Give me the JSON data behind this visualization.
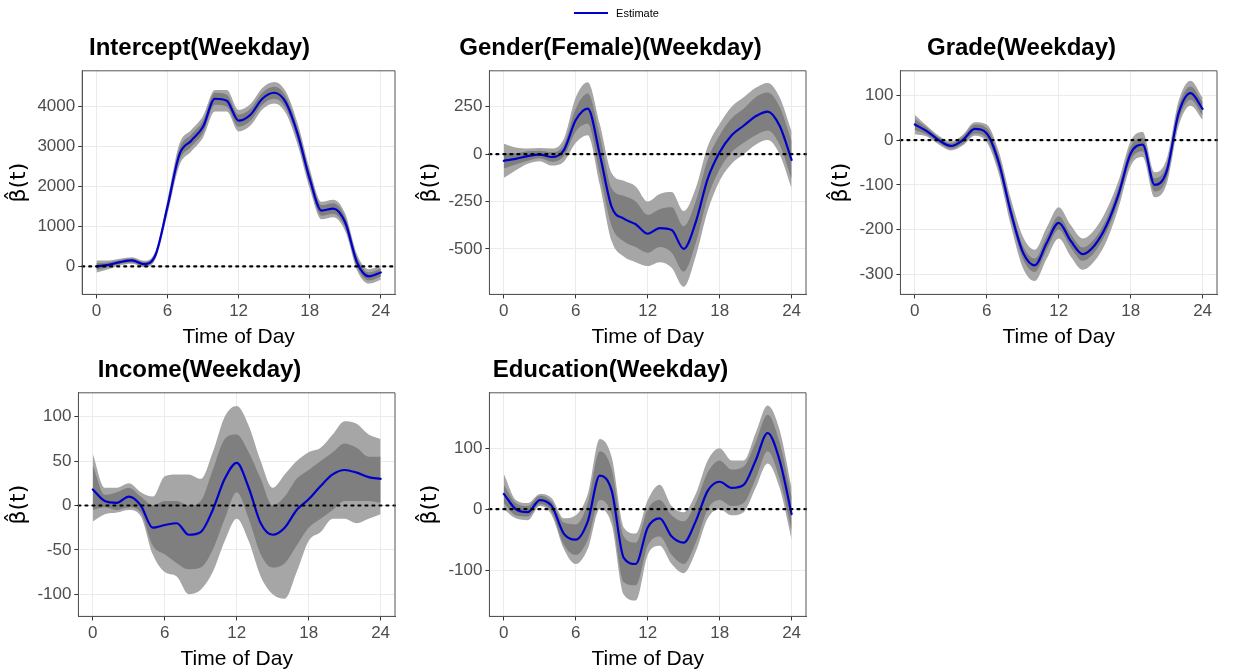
{
  "chart_data": [
    {
      "type": "line",
      "title": "Intercept(Weekday)",
      "xlabel": "Time of Day",
      "ylabel": "β̂(t)",
      "legend": "top",
      "grid": true,
      "line_style": "solid",
      "marker": "none",
      "xlim": [
        -1.2,
        25.2
      ],
      "xticks": [
        0,
        6,
        12,
        18,
        24
      ],
      "ylim": [
        -700,
        4900
      ],
      "yticks": [
        0,
        1000,
        2000,
        3000,
        4000
      ],
      "x": [
        0,
        1,
        2,
        3,
        4,
        5,
        6,
        7,
        8,
        9,
        10,
        11,
        12,
        13,
        14,
        15,
        16,
        17,
        18,
        19,
        20,
        21,
        22,
        23,
        24
      ],
      "ref_lines": [
        {
          "axis": "y",
          "value": 0,
          "color": "#000000",
          "line_style": "dotted"
        }
      ],
      "series": [
        {
          "color": "#a6a6a6",
          "values": [
            null,
            null,
            null,
            null,
            null,
            null,
            null,
            null,
            null,
            null,
            null,
            null,
            null,
            null,
            null,
            null,
            null,
            null,
            null,
            null,
            null,
            null,
            null,
            null,
            null
          ],
          "lower": [
            -150,
            -70,
            30,
            70,
            -20,
            200,
            1320,
            2530,
            2880,
            3230,
            3880,
            3880,
            3380,
            3530,
            3930,
            4080,
            3830,
            3030,
            1950,
            1180,
            1230,
            880,
            -100,
            -430,
            -330
          ],
          "upper": [
            150,
            150,
            190,
            230,
            140,
            400,
            1680,
            3070,
            3420,
            3770,
            4420,
            4420,
            3920,
            4070,
            4470,
            4620,
            4370,
            3570,
            2450,
            1620,
            1670,
            1320,
            300,
            -70,
            30
          ]
        },
        {
          "color": "#7f7f7f",
          "values": [
            null,
            null,
            null,
            null,
            null,
            null,
            null,
            null,
            null,
            null,
            null,
            null,
            null,
            null,
            null,
            null,
            null,
            null,
            null,
            null,
            null,
            null,
            null,
            null,
            null
          ],
          "lower": [
            -80,
            -20,
            60,
            100,
            10,
            240,
            1400,
            2650,
            3000,
            3350,
            4050,
            4000,
            3500,
            3650,
            4050,
            4200,
            3950,
            3150,
            2050,
            1270,
            1320,
            970,
            -20,
            -350,
            -250
          ],
          "upper": [
            80,
            100,
            160,
            200,
            110,
            360,
            1600,
            2950,
            3300,
            3650,
            4350,
            4300,
            3800,
            3950,
            4350,
            4500,
            4250,
            3450,
            2350,
            1530,
            1580,
            1230,
            220,
            -150,
            -50
          ]
        },
        {
          "name": "Estimate",
          "color": "#0000cd",
          "values": [
            0,
            40,
            110,
            150,
            60,
            300,
            1500,
            2800,
            3150,
            3500,
            4200,
            4150,
            3650,
            3800,
            4200,
            4350,
            4100,
            3300,
            2200,
            1400,
            1450,
            1100,
            100,
            -250,
            -150
          ]
        }
      ]
    },
    {
      "type": "line",
      "title": "Gender(Female)(Weekday)",
      "xlabel": "Time of Day",
      "ylabel": "β̂(t)",
      "grid": true,
      "line_style": "solid",
      "marker": "none",
      "xlim": [
        -1.2,
        25.2
      ],
      "xticks": [
        0,
        6,
        12,
        18,
        24
      ],
      "ylim": [
        -740,
        440
      ],
      "yticks": [
        -500,
        -250,
        0,
        250
      ],
      "x": [
        0,
        1,
        2,
        3,
        4,
        5,
        6,
        7,
        8,
        9,
        10,
        11,
        12,
        13,
        14,
        15,
        16,
        17,
        18,
        19,
        20,
        21,
        22,
        23,
        24
      ],
      "ref_lines": [
        {
          "axis": "y",
          "value": 0,
          "color": "#000000",
          "line_style": "dotted"
        }
      ],
      "series": [
        {
          "color": "#a6a6a6",
          "values": [
            null,
            null,
            null,
            null,
            null,
            null,
            null,
            null,
            null,
            null,
            null,
            null,
            null,
            null,
            null,
            null,
            null,
            null,
            null,
            null,
            null,
            null,
            null,
            null,
            null
          ],
          "lower": [
            -125,
            -85,
            -50,
            -37,
            -60,
            -40,
            60,
            100,
            -160,
            -460,
            -540,
            -570,
            -590,
            -570,
            -600,
            -700,
            -540,
            -300,
            -140,
            -50,
            0,
            50,
            75,
            0,
            -180
          ],
          "upper": [
            55,
            35,
            30,
            33,
            30,
            80,
            300,
            380,
            160,
            -100,
            -140,
            -170,
            -250,
            -210,
            -200,
            -300,
            -180,
            40,
            160,
            250,
            300,
            350,
            375,
            300,
            120
          ]
        },
        {
          "color": "#7f7f7f",
          "values": [
            null,
            null,
            null,
            null,
            null,
            null,
            null,
            null,
            null,
            null,
            null,
            null,
            null,
            null,
            null,
            null,
            null,
            null,
            null,
            null,
            null,
            null,
            null,
            null,
            null
          ],
          "lower": [
            -75,
            -55,
            -35,
            -22,
            -40,
            -10,
            120,
            160,
            -100,
            -380,
            -460,
            -490,
            -520,
            -490,
            -520,
            -620,
            -470,
            -230,
            -80,
            10,
            60,
            100,
            125,
            50,
            -130
          ],
          "upper": [
            5,
            5,
            15,
            18,
            10,
            50,
            240,
            320,
            100,
            -180,
            -220,
            -250,
            -320,
            -290,
            -280,
            -380,
            -250,
            -30,
            100,
            190,
            240,
            300,
            325,
            250,
            70
          ]
        },
        {
          "name": "Estimate",
          "color": "#0000cd",
          "values": [
            -35,
            -25,
            -10,
            -2,
            -15,
            20,
            180,
            240,
            0,
            -280,
            -340,
            -370,
            -420,
            -390,
            -400,
            -500,
            -360,
            -130,
            10,
            100,
            150,
            200,
            225,
            150,
            -30
          ]
        }
      ]
    },
    {
      "type": "line",
      "title": "Grade(Weekday)",
      "xlabel": "Time of Day",
      "ylabel": "β̂(t)",
      "grid": true,
      "line_style": "solid",
      "marker": "none",
      "xlim": [
        -1.2,
        25.2
      ],
      "xticks": [
        0,
        6,
        12,
        18,
        24
      ],
      "ylim": [
        -345,
        155
      ],
      "yticks": [
        -300,
        -200,
        -100,
        0,
        100
      ],
      "x": [
        0,
        1,
        2,
        3,
        4,
        5,
        6,
        7,
        8,
        9,
        10,
        11,
        12,
        13,
        14,
        15,
        16,
        17,
        18,
        19,
        20,
        21,
        22,
        23,
        24
      ],
      "ref_lines": [
        {
          "axis": "y",
          "value": 0,
          "color": "#000000",
          "line_style": "dotted"
        }
      ],
      "series": [
        {
          "color": "#a6a6a6",
          "values": [
            null,
            null,
            null,
            null,
            null,
            null,
            null,
            null,
            null,
            null,
            null,
            null,
            null,
            null,
            null,
            null,
            null,
            null,
            null,
            null,
            null,
            null,
            null,
            null,
            null
          ],
          "lower": [
            13,
            8,
            -10,
            -23,
            -12,
            10,
            -5,
            -75,
            -190,
            -285,
            -315,
            -265,
            -220,
            -260,
            -290,
            -270,
            -225,
            -150,
            -58,
            -38,
            -128,
            -98,
            32,
            77,
            45
          ],
          "upper": [
            57,
            32,
            10,
            -3,
            12,
            40,
            35,
            -25,
            -130,
            -215,
            -245,
            -195,
            -150,
            -190,
            -220,
            -200,
            -155,
            -90,
            -2,
            18,
            -72,
            -42,
            88,
            133,
            95
          ]
        },
        {
          "color": "#7f7f7f",
          "values": [
            null,
            null,
            null,
            null,
            null,
            null,
            null,
            null,
            null,
            null,
            null,
            null,
            null,
            null,
            null,
            null,
            null,
            null,
            null,
            null,
            null,
            null,
            null,
            null,
            null
          ],
          "lower": [
            23,
            12,
            -6,
            -19,
            -8,
            15,
            3,
            -65,
            -175,
            -265,
            -295,
            -245,
            -200,
            -240,
            -270,
            -250,
            -205,
            -135,
            -45,
            -25,
            -115,
            -85,
            45,
            90,
            55
          ],
          "upper": [
            47,
            28,
            6,
            -7,
            8,
            35,
            27,
            -35,
            -145,
            -235,
            -265,
            -215,
            -170,
            -210,
            -240,
            -220,
            -175,
            -105,
            -15,
            5,
            -85,
            -55,
            75,
            120,
            85
          ]
        },
        {
          "name": "Estimate",
          "color": "#0000cd",
          "values": [
            35,
            20,
            0,
            -13,
            0,
            25,
            15,
            -50,
            -160,
            -250,
            -280,
            -230,
            -185,
            -225,
            -255,
            -235,
            -190,
            -120,
            -30,
            -10,
            -100,
            -70,
            60,
            105,
            70
          ]
        }
      ]
    },
    {
      "type": "line",
      "title": "Income(Weekday)",
      "xlabel": "Time of Day",
      "ylabel": "β̂(t)",
      "grid": true,
      "line_style": "solid",
      "marker": "none",
      "xlim": [
        -1.2,
        25.2
      ],
      "xticks": [
        0,
        6,
        12,
        18,
        24
      ],
      "ylim": [
        -125,
        127
      ],
      "yticks": [
        -100,
        -50,
        0,
        50,
        100
      ],
      "x": [
        0,
        1,
        2,
        3,
        4,
        5,
        6,
        7,
        8,
        9,
        10,
        11,
        12,
        13,
        14,
        15,
        16,
        17,
        18,
        19,
        20,
        21,
        22,
        23,
        24
      ],
      "ref_lines": [
        {
          "axis": "y",
          "value": 0,
          "color": "#000000",
          "line_style": "dotted"
        }
      ],
      "series": [
        {
          "color": "#a6a6a6",
          "values": [
            null,
            null,
            null,
            null,
            null,
            null,
            null,
            null,
            null,
            null,
            null,
            null,
            null,
            null,
            null,
            null,
            null,
            null,
            null,
            null,
            null,
            null,
            null,
            null,
            null
          ],
          "lower": [
            -18,
            -10,
            -8,
            -5,
            -12,
            -55,
            -75,
            -80,
            -100,
            -95,
            -75,
            -40,
            -15,
            -40,
            -80,
            -100,
            -105,
            -75,
            -40,
            -30,
            -15,
            -15,
            -20,
            -15,
            -10
          ],
          "upper": [
            58,
            20,
            20,
            25,
            15,
            10,
            33,
            35,
            35,
            30,
            60,
            100,
            112,
            90,
            50,
            20,
            35,
            50,
            60,
            65,
            80,
            95,
            92,
            80,
            75
          ]
        },
        {
          "color": "#7f7f7f",
          "values": [
            null,
            null,
            null,
            null,
            null,
            null,
            null,
            null,
            null,
            null,
            null,
            null,
            null,
            null,
            null,
            null,
            null,
            null,
            null,
            null,
            null,
            null,
            null,
            null,
            null
          ],
          "lower": [
            -5,
            -2,
            -5,
            -2,
            -8,
            -45,
            -55,
            -65,
            -72,
            -70,
            -50,
            -15,
            15,
            -15,
            -55,
            -70,
            -65,
            -45,
            -25,
            -15,
            -5,
            5,
            5,
            5,
            3
          ],
          "upper": [
            45,
            12,
            15,
            20,
            10,
            0,
            5,
            5,
            0,
            5,
            40,
            75,
            80,
            60,
            30,
            0,
            10,
            30,
            40,
            50,
            60,
            70,
            65,
            55,
            55
          ]
        },
        {
          "name": "Estimate",
          "color": "#0000cd",
          "values": [
            18,
            5,
            3,
            10,
            0,
            -25,
            -22,
            -20,
            -33,
            -30,
            -5,
            30,
            48,
            20,
            -20,
            -33,
            -25,
            -5,
            7,
            22,
            35,
            40,
            37,
            32,
            30
          ]
        }
      ]
    },
    {
      "type": "line",
      "title": "Education(Weekday)",
      "xlabel": "Time of Day",
      "ylabel": "β̂(t)",
      "grid": true,
      "line_style": "solid",
      "marker": "none",
      "xlim": [
        -1.2,
        25.2
      ],
      "xticks": [
        0,
        6,
        12,
        18,
        24
      ],
      "ylim": [
        -176,
        191
      ],
      "yticks": [
        -100,
        0,
        100
      ],
      "x": [
        0,
        1,
        2,
        3,
        4,
        5,
        6,
        7,
        8,
        9,
        10,
        11,
        12,
        13,
        14,
        15,
        16,
        17,
        18,
        19,
        20,
        21,
        22,
        23,
        24
      ],
      "ref_lines": [
        {
          "axis": "y",
          "value": 0,
          "color": "#000000",
          "line_style": "dotted"
        }
      ],
      "series": [
        {
          "color": "#a6a6a6",
          "values": [
            null,
            null,
            null,
            null,
            null,
            null,
            null,
            null,
            null,
            null,
            null,
            null,
            null,
            null,
            null,
            null,
            null,
            null,
            null,
            null,
            null,
            null,
            null,
            null,
            null
          ],
          "lower": [
            0,
            -15,
            -18,
            5,
            -10,
            -65,
            -90,
            -65,
            0,
            -25,
            -140,
            -150,
            -75,
            -60,
            -90,
            -105,
            -70,
            -15,
            0,
            -10,
            -5,
            35,
            75,
            35,
            -50
          ],
          "upper": [
            58,
            15,
            10,
            25,
            18,
            -15,
            -10,
            25,
            115,
            85,
            -30,
            -40,
            15,
            40,
            5,
            -5,
            25,
            80,
            100,
            80,
            80,
            125,
            170,
            130,
            35
          ]
        },
        {
          "color": "#7f7f7f",
          "values": [
            null,
            null,
            null,
            null,
            null,
            null,
            null,
            null,
            null,
            null,
            null,
            null,
            null,
            null,
            null,
            null,
            null,
            null,
            null,
            null,
            null,
            null,
            null,
            null,
            null
          ],
          "lower": [
            10,
            -10,
            -12,
            8,
            -5,
            -58,
            -75,
            -50,
            15,
            -10,
            -120,
            -125,
            -60,
            -45,
            -75,
            -90,
            -55,
            0,
            15,
            5,
            10,
            50,
            95,
            50,
            -35
          ],
          "upper": [
            40,
            10,
            5,
            22,
            12,
            -22,
            -25,
            10,
            95,
            65,
            -45,
            -55,
            0,
            15,
            -10,
            -20,
            10,
            60,
            80,
            65,
            70,
            110,
            155,
            110,
            20
          ]
        },
        {
          "name": "Estimate",
          "color": "#0000cd",
          "values": [
            25,
            0,
            -5,
            15,
            5,
            -40,
            -50,
            -20,
            55,
            30,
            -80,
            -90,
            -30,
            -15,
            -45,
            -55,
            -20,
            30,
            45,
            35,
            40,
            80,
            125,
            80,
            -8
          ]
        }
      ]
    }
  ]
}
